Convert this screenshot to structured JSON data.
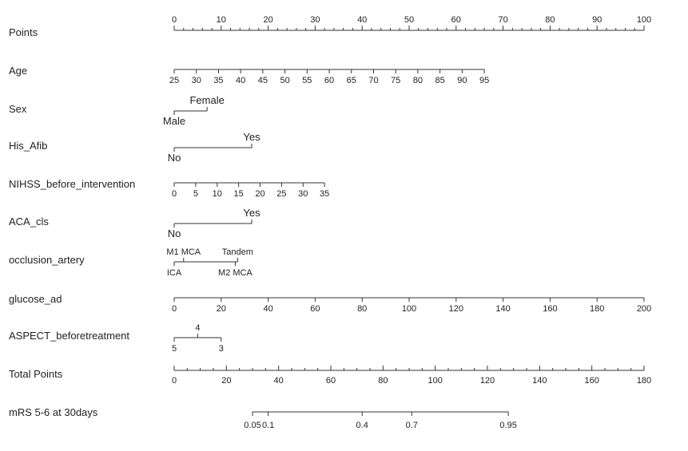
{
  "chart_data": {
    "type": "nomogram",
    "rows": [
      {
        "label": "Points",
        "kind": "scale",
        "min": 0,
        "max": 100,
        "ticks": [
          0,
          10,
          20,
          30,
          40,
          50,
          60,
          70,
          80,
          90,
          100
        ],
        "minor_step": 2,
        "label_pos": "above"
      },
      {
        "label": "Age",
        "kind": "continuous",
        "values": [
          25,
          30,
          35,
          40,
          45,
          50,
          55,
          60,
          65,
          70,
          75,
          80,
          85,
          90,
          95
        ],
        "points_at_min": 0,
        "points_at_max": 66
      },
      {
        "label": "Sex",
        "kind": "categorical",
        "levels": [
          {
            "name": "Male",
            "points": 0,
            "pos": "below"
          },
          {
            "name": "Female",
            "points": 7,
            "pos": "above"
          }
        ]
      },
      {
        "label": "His_Afib",
        "kind": "categorical",
        "levels": [
          {
            "name": "No",
            "points": 0,
            "pos": "below"
          },
          {
            "name": "Yes",
            "points": 16.5,
            "pos": "above"
          }
        ]
      },
      {
        "label": "NIHSS_before_intervention",
        "kind": "continuous",
        "values": [
          0,
          5,
          10,
          15,
          20,
          25,
          30,
          35
        ],
        "points_at_min": 0,
        "points_at_max": 32
      },
      {
        "label": "ACA_cls",
        "kind": "categorical",
        "levels": [
          {
            "name": "No",
            "points": 0,
            "pos": "below"
          },
          {
            "name": "Yes",
            "points": 16.5,
            "pos": "above"
          }
        ]
      },
      {
        "label": "occlusion_artery",
        "kind": "categorical",
        "levels": [
          {
            "name": "ICA",
            "points": 0,
            "pos": "below"
          },
          {
            "name": "M1 MCA",
            "points": 2,
            "pos": "above"
          },
          {
            "name": "M2 MCA",
            "points": 13,
            "pos": "below"
          },
          {
            "name": "Tandem",
            "points": 13.5,
            "pos": "above"
          }
        ]
      },
      {
        "label": "glucose_ad",
        "kind": "continuous",
        "values": [
          0,
          20,
          40,
          60,
          80,
          100,
          120,
          140,
          160,
          180,
          200
        ],
        "points_at_min": 0,
        "points_at_max": 100
      },
      {
        "label": "ASPECT_beforetreatment",
        "kind": "categorical",
        "levels": [
          {
            "name": "5",
            "points": 0,
            "pos": "below"
          },
          {
            "name": "4",
            "points": 5,
            "pos": "above"
          },
          {
            "name": "3",
            "points": 10,
            "pos": "below"
          }
        ]
      },
      {
        "label": "Total Points",
        "kind": "scale",
        "min": 0,
        "max": 180,
        "ticks": [
          0,
          20,
          40,
          60,
          80,
          100,
          120,
          140,
          160,
          180
        ],
        "minor_step": 5,
        "label_pos": "below"
      },
      {
        "label": "mRS 5-6 at 30days",
        "kind": "probability",
        "values": [
          0.05,
          0.1,
          0.4,
          0.7,
          0.95
        ],
        "tick_labels": [
          "0.05",
          "0.1",
          "0.4",
          "0.7",
          "0.95"
        ],
        "total_points": [
          30,
          36,
          72,
          91,
          128
        ]
      }
    ]
  }
}
